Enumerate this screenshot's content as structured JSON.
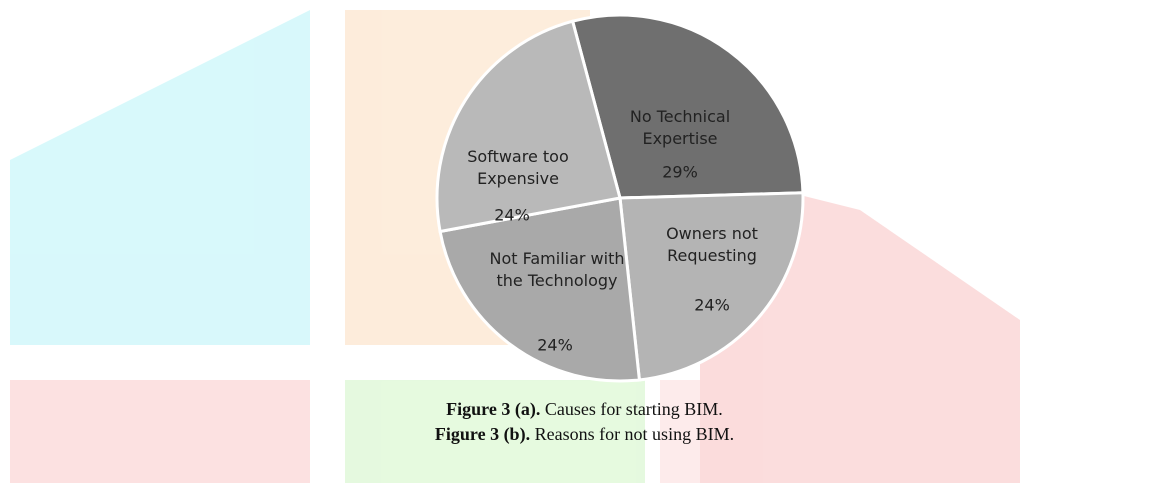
{
  "chart_data": {
    "type": "pie",
    "categories": [
      "No Technical Expertise",
      "Owners not Requesting",
      "Not Familiar with the Technology",
      "Software too Expensive"
    ],
    "values": [
      29,
      24,
      24,
      24
    ],
    "value_labels": [
      "29%",
      "24%",
      "24%",
      "24%"
    ],
    "colors": [
      "#6f6f6f",
      "#b4b4b4",
      "#a9a9a9",
      "#b9b9b9"
    ]
  },
  "captions": [
    {
      "label": "Figure 3 (a).",
      "text": "Causes for starting BIM."
    },
    {
      "label": "Figure 3 (b).",
      "text": "Reasons for not using BIM."
    }
  ]
}
